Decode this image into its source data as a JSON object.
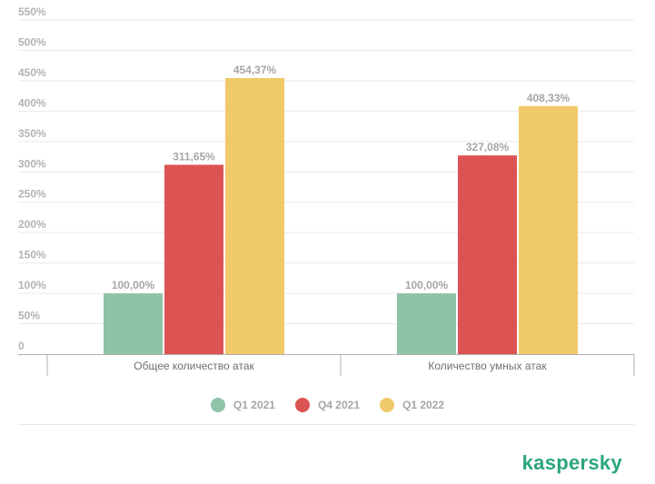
{
  "chart_data": {
    "type": "bar",
    "categories": [
      "Общее количество атак",
      "Количество умных атак"
    ],
    "series": [
      {
        "name": "Q1 2021",
        "color": "#8fc3a7",
        "values": [
          100.0,
          100.0
        ],
        "labels": [
          "100,00%",
          "100,00%"
        ]
      },
      {
        "name": "Q4 2021",
        "color": "#dc5353",
        "values": [
          311.65,
          327.08
        ],
        "labels": [
          "311,65%",
          "327,08%"
        ]
      },
      {
        "name": "Q1 2022",
        "color": "#f0c96a",
        "values": [
          454.37,
          408.33
        ],
        "labels": [
          "454,37%",
          "408,33%"
        ]
      }
    ],
    "yticks": [
      0,
      50,
      100,
      150,
      200,
      250,
      300,
      350,
      400,
      450,
      500,
      550
    ],
    "ytick_labels": [
      "0",
      "50%",
      "100%",
      "150%",
      "200%",
      "250%",
      "300%",
      "350%",
      "400%",
      "450%",
      "500%",
      "550%"
    ],
    "ylim": [
      0,
      550
    ],
    "grid": true,
    "legend_position": "bottom-center"
  },
  "brand": {
    "text": "kaspersky",
    "color": "#2aa57e"
  }
}
